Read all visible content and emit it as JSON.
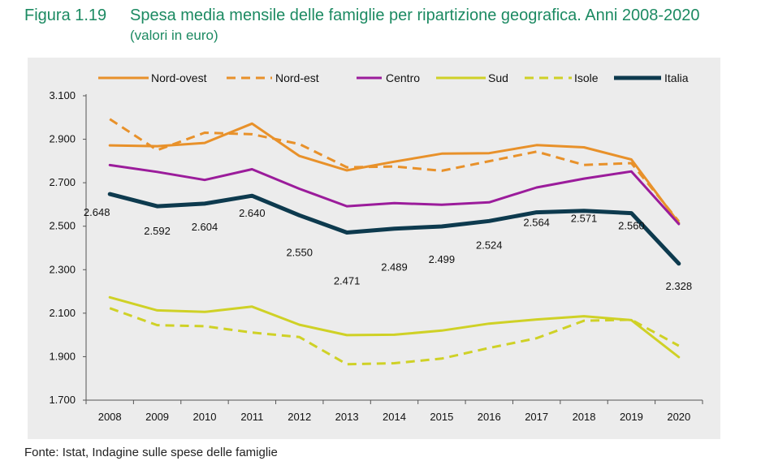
{
  "figure": {
    "label": "Figura 1.19",
    "title": "Spesa media mensile delle famiglie per ripartizione geografica. Anni 2008-2020",
    "subtitle": "(valori in euro)"
  },
  "source": "Fonte: Istat, Indagine sulle spese delle famiglie",
  "chart_data": {
    "type": "line",
    "title": "Spesa media mensile delle famiglie per ripartizione geografica. Anni 2008-2020",
    "xlabel": "",
    "ylabel": "",
    "ylim": [
      1700,
      3100
    ],
    "yticks": [
      1700,
      1900,
      2100,
      2300,
      2500,
      2700,
      2900,
      3100
    ],
    "ytick_labels": [
      "1.700",
      "1.900",
      "2.100",
      "2.300",
      "2.500",
      "2.700",
      "2.900",
      "3.100"
    ],
    "categories": [
      "2008",
      "2009",
      "2010",
      "2011",
      "2012",
      "2013",
      "2014",
      "2015",
      "2016",
      "2017",
      "2018",
      "2019",
      "2020"
    ],
    "legend_position": "top",
    "series": [
      {
        "name": "Nord-ovest",
        "color": "#e8912a",
        "dash": "solid",
        "values": [
          2872,
          2868,
          2883,
          2972,
          2823,
          2757,
          2797,
          2834,
          2836,
          2873,
          2863,
          2807,
          2515
        ]
      },
      {
        "name": "Nord-est",
        "color": "#e8912a",
        "dash": "dashed",
        "values": [
          2993,
          2850,
          2930,
          2923,
          2878,
          2771,
          2775,
          2755,
          2799,
          2843,
          2782,
          2790,
          2522
        ]
      },
      {
        "name": "Centro",
        "color": "#9b1c9b",
        "dash": "solid",
        "values": [
          2781,
          2750,
          2713,
          2762,
          2672,
          2592,
          2606,
          2599,
          2610,
          2678,
          2719,
          2752,
          2510
        ]
      },
      {
        "name": "Sud",
        "color": "#cfd126",
        "dash": "solid",
        "values": [
          2173,
          2113,
          2106,
          2130,
          2047,
          1999,
          2001,
          2020,
          2052,
          2071,
          2086,
          2068,
          1898
        ]
      },
      {
        "name": "Isole",
        "color": "#cfd126",
        "dash": "dashed",
        "values": [
          2123,
          2045,
          2040,
          2011,
          1990,
          1865,
          1870,
          1891,
          1940,
          1985,
          2065,
          2070,
          1950
        ]
      },
      {
        "name": "Italia",
        "color": "#0d3a4e",
        "dash": "solid",
        "values": [
          2648,
          2592,
          2604,
          2640,
          2550,
          2471,
          2489,
          2499,
          2524,
          2564,
          2571,
          2560,
          2328
        ]
      }
    ],
    "data_labels": {
      "series": "Italia",
      "labels": [
        "2.648",
        "2.592",
        "2.604",
        "2.640",
        "2.550",
        "2.471",
        "2.489",
        "2.499",
        "2.524",
        "2.564",
        "2.571",
        "2.560",
        "2.328"
      ]
    }
  }
}
